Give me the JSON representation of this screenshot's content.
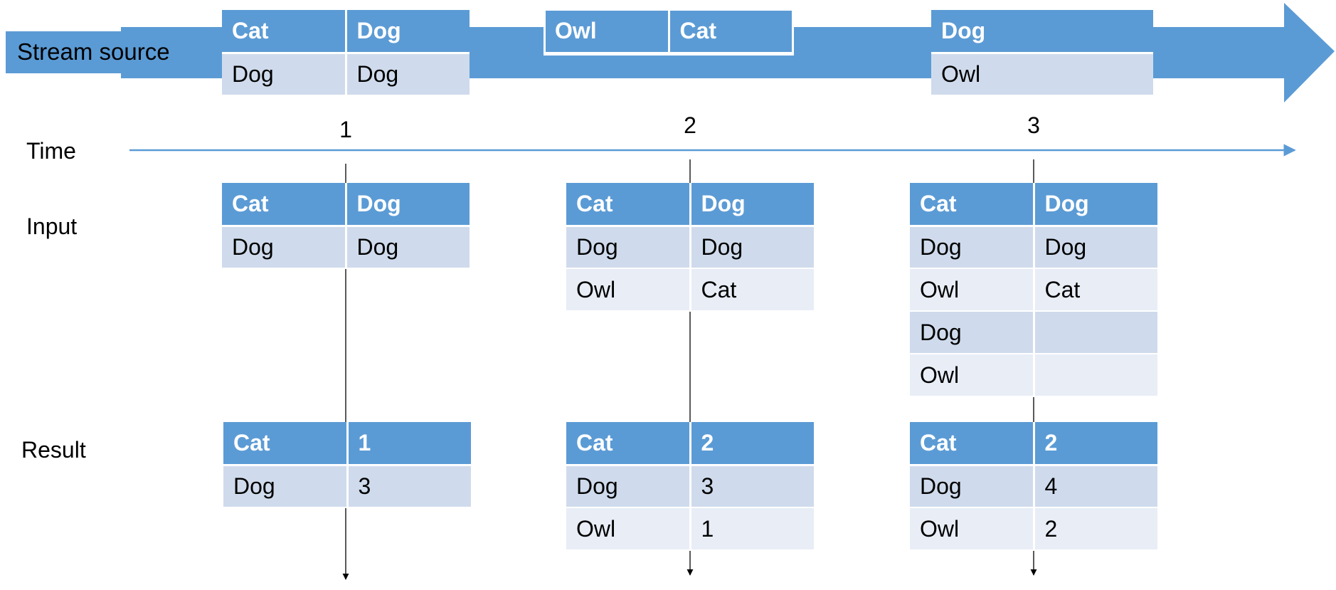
{
  "colors": {
    "accent": "#5b9bd5",
    "row_dark": "#cfdbec",
    "row_light": "#e8edf6",
    "time_axis": "#5b9bd5"
  },
  "stream": {
    "label": "Stream source",
    "batch1": {
      "rows": [
        [
          "Cat",
          "Dog"
        ],
        [
          "Dog",
          "Dog"
        ]
      ]
    },
    "batch2": {
      "rows": [
        [
          "Owl",
          "Cat"
        ]
      ]
    },
    "batch3": {
      "rows": [
        [
          "Dog"
        ],
        [
          "Owl"
        ]
      ]
    }
  },
  "labels": {
    "time": "Time",
    "input": "Input",
    "result": "Result"
  },
  "triggers": [
    {
      "number": "1",
      "input": [
        [
          "Cat",
          "Dog"
        ],
        [
          "Dog",
          "Dog"
        ]
      ],
      "result": [
        [
          "Cat",
          "1"
        ],
        [
          "Dog",
          "3"
        ]
      ]
    },
    {
      "number": "2",
      "input": [
        [
          "Cat",
          "Dog"
        ],
        [
          "Dog",
          "Dog"
        ],
        [
          "Owl",
          "Cat"
        ]
      ],
      "result": [
        [
          "Cat",
          "2"
        ],
        [
          "Dog",
          "3"
        ],
        [
          "Owl",
          "1"
        ]
      ]
    },
    {
      "number": "3",
      "input": [
        [
          "Cat",
          "Dog"
        ],
        [
          "Dog",
          "Dog"
        ],
        [
          "Owl",
          "Cat"
        ],
        [
          "Dog",
          ""
        ],
        [
          "Owl",
          ""
        ]
      ],
      "result": [
        [
          "Cat",
          "2"
        ],
        [
          "Dog",
          "4"
        ],
        [
          "Owl",
          "2"
        ]
      ]
    }
  ]
}
